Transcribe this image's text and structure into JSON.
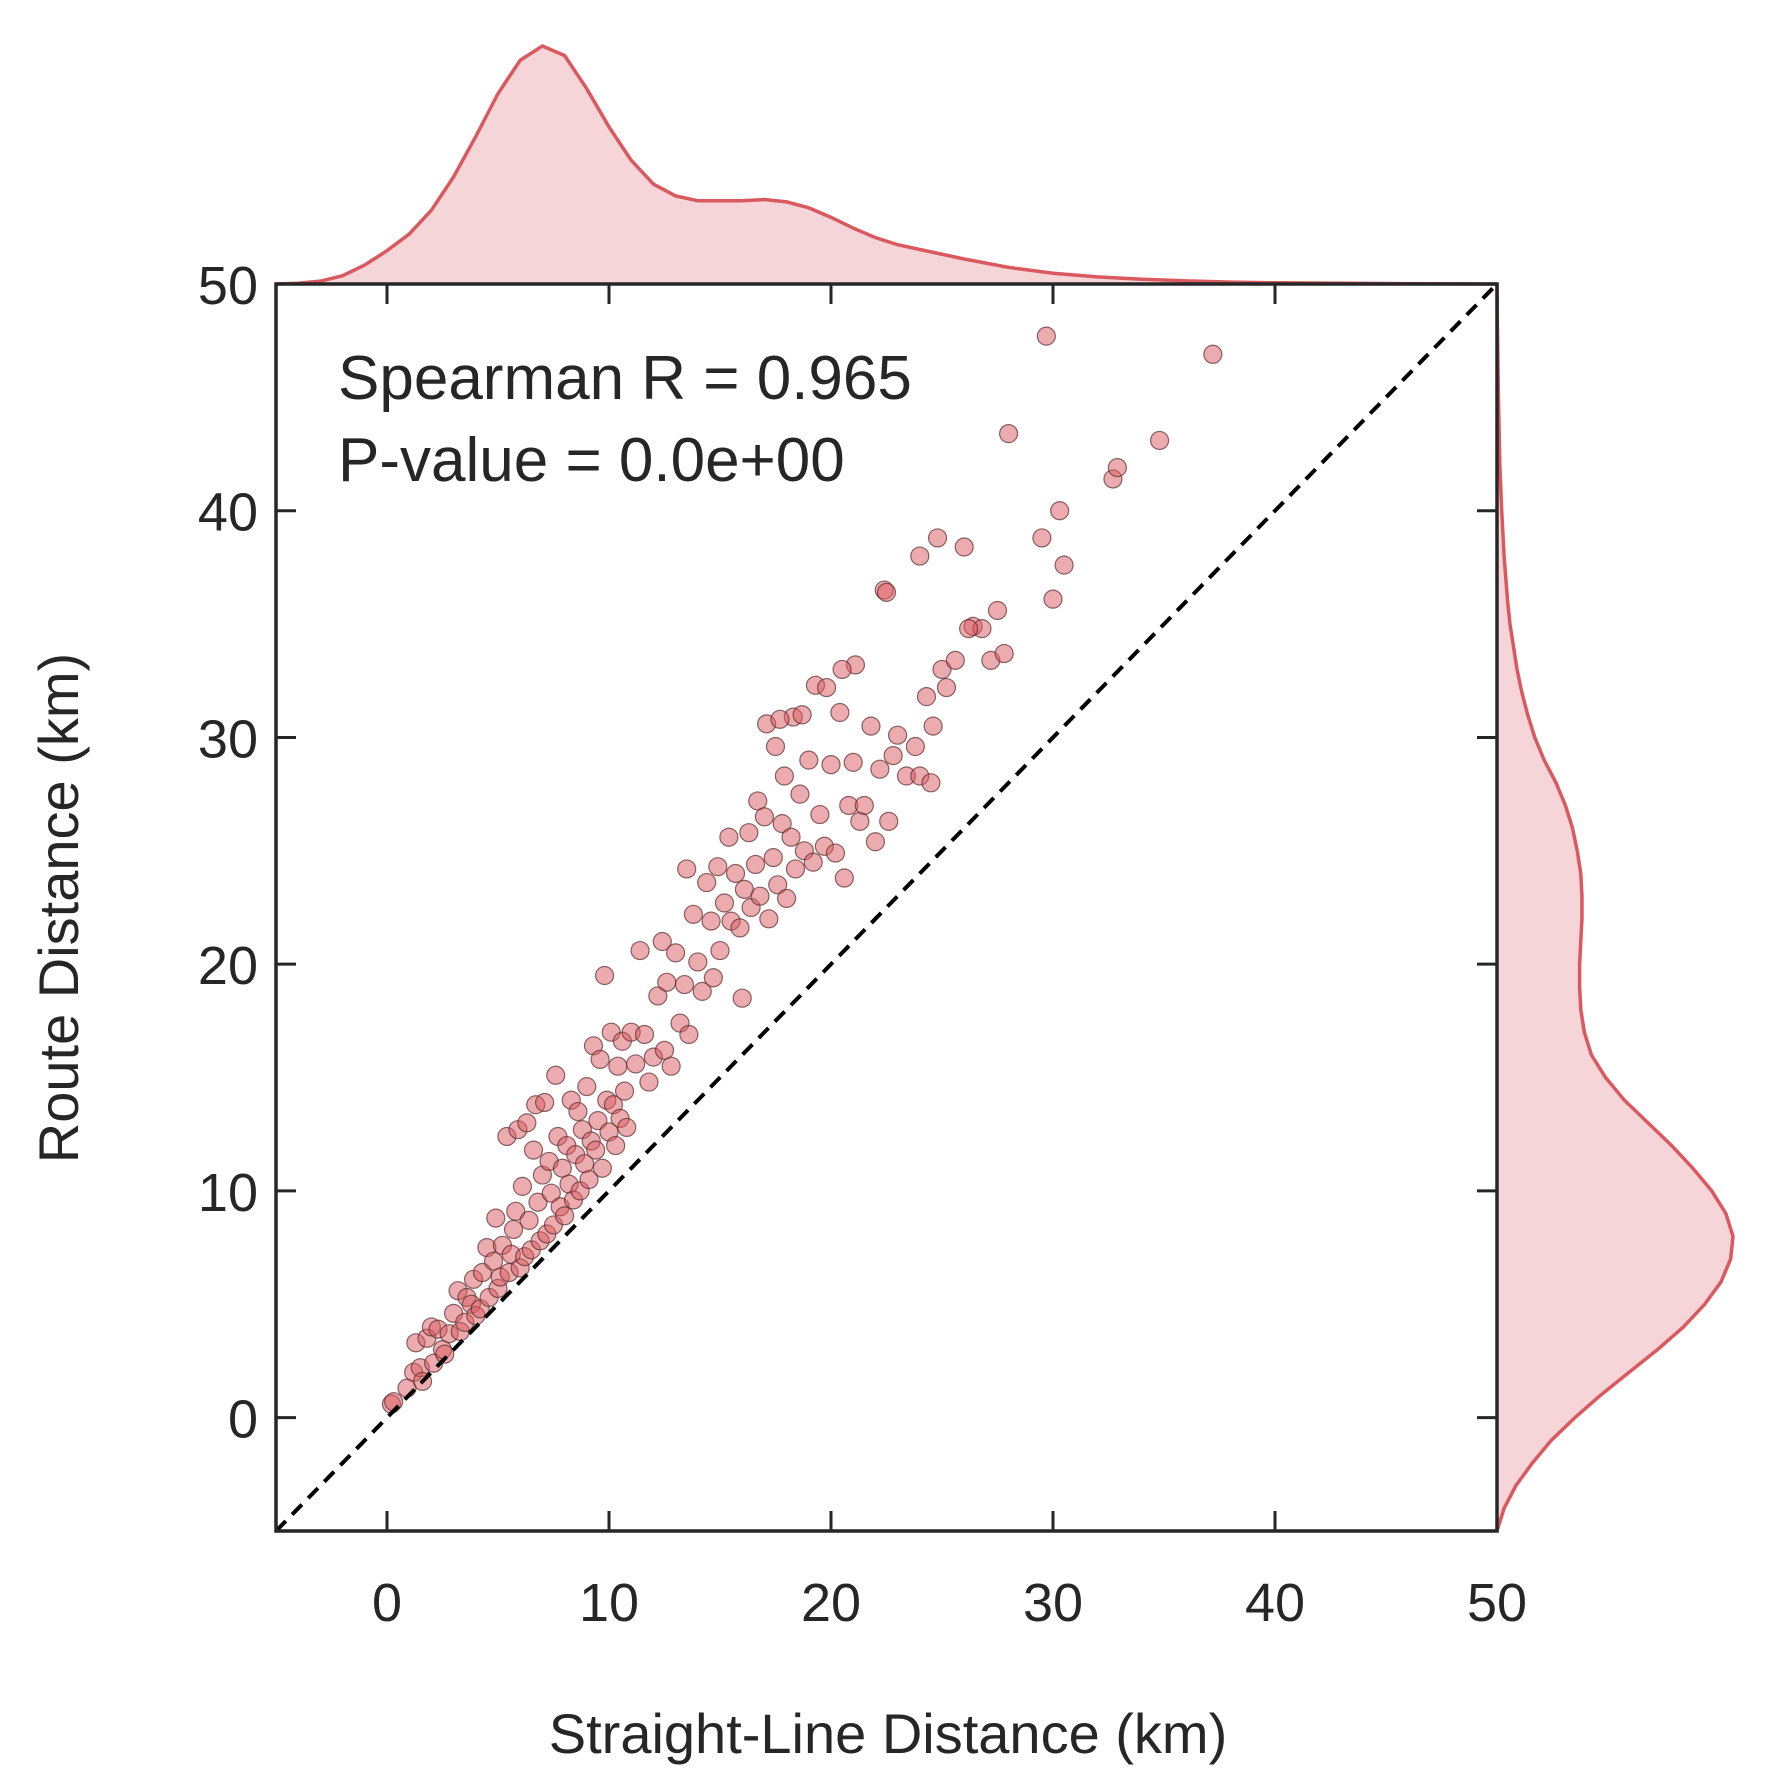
{
  "chart_data": {
    "type": "scatter",
    "xlabel": "Straight-Line Distance (km)",
    "ylabel": "Route Distance (km)",
    "xlim": [
      -5,
      50
    ],
    "ylim": [
      -5,
      50
    ],
    "xticks": [
      "0",
      "10",
      "20",
      "30",
      "40",
      "50"
    ],
    "yticks": [
      "0",
      "10",
      "20",
      "30",
      "40",
      "50"
    ],
    "annotations": [
      "Spearman R = 0.965",
      "P-value = 0.0e+00"
    ],
    "reference_line": {
      "style": "dashed",
      "from": [
        -5,
        -5
      ],
      "to": [
        50,
        50
      ],
      "color": "#000000"
    },
    "marker_color": "#d9595f",
    "series": [
      {
        "points": [
          [
            0.2,
            0.6
          ],
          [
            0.3,
            0.7
          ],
          [
            0.9,
            1.3
          ],
          [
            1.2,
            2.0
          ],
          [
            1.3,
            3.3
          ],
          [
            1.5,
            2.2
          ],
          [
            1.6,
            1.6
          ],
          [
            1.8,
            3.5
          ],
          [
            2.0,
            4.0
          ],
          [
            2.1,
            2.4
          ],
          [
            2.3,
            3.9
          ],
          [
            2.5,
            3.0
          ],
          [
            2.6,
            2.8
          ],
          [
            2.8,
            3.7
          ],
          [
            3.0,
            4.6
          ],
          [
            3.2,
            5.6
          ],
          [
            3.3,
            3.8
          ],
          [
            3.5,
            4.2
          ],
          [
            3.6,
            5.3
          ],
          [
            3.8,
            5.0
          ],
          [
            3.9,
            6.1
          ],
          [
            4.0,
            4.5
          ],
          [
            4.2,
            4.8
          ],
          [
            4.3,
            6.4
          ],
          [
            4.5,
            7.5
          ],
          [
            4.6,
            5.3
          ],
          [
            4.8,
            6.9
          ],
          [
            4.9,
            8.8
          ],
          [
            5.0,
            5.7
          ],
          [
            5.1,
            6.2
          ],
          [
            5.2,
            7.6
          ],
          [
            5.4,
            12.4
          ],
          [
            5.5,
            6.4
          ],
          [
            5.6,
            7.2
          ],
          [
            5.7,
            8.3
          ],
          [
            5.8,
            9.1
          ],
          [
            5.9,
            12.7
          ],
          [
            6.0,
            6.6
          ],
          [
            6.1,
            10.2
          ],
          [
            6.2,
            7.1
          ],
          [
            6.3,
            13.0
          ],
          [
            6.4,
            8.7
          ],
          [
            6.5,
            7.4
          ],
          [
            6.6,
            11.8
          ],
          [
            6.7,
            13.8
          ],
          [
            6.8,
            9.5
          ],
          [
            6.9,
            7.8
          ],
          [
            7.0,
            10.7
          ],
          [
            7.1,
            13.9
          ],
          [
            7.2,
            8.1
          ],
          [
            7.3,
            11.3
          ],
          [
            7.4,
            9.9
          ],
          [
            7.5,
            8.5
          ],
          [
            7.6,
            15.1
          ],
          [
            7.7,
            12.4
          ],
          [
            7.8,
            9.3
          ],
          [
            7.9,
            11.0
          ],
          [
            8.0,
            8.9
          ],
          [
            8.1,
            12.0
          ],
          [
            8.2,
            10.3
          ],
          [
            8.3,
            14.0
          ],
          [
            8.4,
            9.6
          ],
          [
            8.5,
            11.6
          ],
          [
            8.6,
            13.5
          ],
          [
            8.7,
            10.0
          ],
          [
            8.8,
            12.7
          ],
          [
            8.9,
            11.2
          ],
          [
            9.0,
            14.6
          ],
          [
            9.1,
            10.5
          ],
          [
            9.2,
            12.2
          ],
          [
            9.3,
            16.4
          ],
          [
            9.4,
            11.8
          ],
          [
            9.5,
            13.1
          ],
          [
            9.6,
            15.8
          ],
          [
            9.7,
            11.0
          ],
          [
            9.8,
            19.5
          ],
          [
            9.9,
            14.0
          ],
          [
            10.0,
            12.6
          ],
          [
            10.1,
            17.0
          ],
          [
            10.2,
            13.8
          ],
          [
            10.3,
            12.0
          ],
          [
            10.4,
            15.5
          ],
          [
            10.5,
            13.2
          ],
          [
            10.6,
            16.6
          ],
          [
            10.7,
            14.4
          ],
          [
            10.8,
            12.8
          ],
          [
            11.0,
            17.0
          ],
          [
            11.2,
            15.6
          ],
          [
            11.4,
            20.6
          ],
          [
            11.6,
            16.9
          ],
          [
            11.8,
            14.8
          ],
          [
            12.0,
            15.9
          ],
          [
            12.2,
            18.6
          ],
          [
            12.4,
            21.0
          ],
          [
            12.5,
            16.2
          ],
          [
            12.6,
            19.2
          ],
          [
            12.8,
            15.5
          ],
          [
            13.0,
            20.5
          ],
          [
            13.2,
            17.4
          ],
          [
            13.4,
            19.1
          ],
          [
            13.5,
            24.2
          ],
          [
            13.6,
            16.9
          ],
          [
            13.8,
            22.2
          ],
          [
            14.0,
            20.1
          ],
          [
            14.2,
            18.8
          ],
          [
            14.4,
            23.6
          ],
          [
            14.6,
            21.9
          ],
          [
            14.7,
            19.4
          ],
          [
            14.9,
            24.3
          ],
          [
            15.0,
            20.6
          ],
          [
            15.2,
            22.7
          ],
          [
            15.4,
            25.6
          ],
          [
            15.5,
            21.9
          ],
          [
            15.7,
            24.0
          ],
          [
            15.9,
            21.6
          ],
          [
            16.0,
            18.5
          ],
          [
            16.1,
            23.3
          ],
          [
            16.3,
            25.8
          ],
          [
            16.4,
            22.5
          ],
          [
            16.6,
            24.4
          ],
          [
            16.7,
            27.2
          ],
          [
            16.8,
            23.0
          ],
          [
            17.0,
            26.5
          ],
          [
            17.1,
            30.6
          ],
          [
            17.2,
            22.0
          ],
          [
            17.4,
            24.7
          ],
          [
            17.5,
            29.6
          ],
          [
            17.6,
            23.5
          ],
          [
            17.8,
            26.2
          ],
          [
            17.9,
            28.3
          ],
          [
            18.0,
            22.9
          ],
          [
            18.2,
            25.6
          ],
          [
            18.3,
            30.9
          ],
          [
            18.4,
            24.2
          ],
          [
            18.6,
            27.5
          ],
          [
            18.7,
            31.0
          ],
          [
            18.8,
            25.0
          ],
          [
            19.0,
            29.0
          ],
          [
            19.2,
            24.5
          ],
          [
            19.3,
            32.3
          ],
          [
            19.5,
            26.6
          ],
          [
            19.7,
            25.2
          ],
          [
            19.8,
            32.2
          ],
          [
            20.0,
            28.8
          ],
          [
            20.2,
            24.9
          ],
          [
            20.4,
            31.1
          ],
          [
            20.6,
            23.8
          ],
          [
            20.8,
            27.0
          ],
          [
            21.0,
            28.9
          ],
          [
            21.1,
            33.2
          ],
          [
            21.3,
            26.3
          ],
          [
            21.5,
            27.0
          ],
          [
            21.8,
            30.5
          ],
          [
            22.0,
            25.4
          ],
          [
            22.2,
            28.6
          ],
          [
            22.4,
            36.5
          ],
          [
            22.6,
            26.3
          ],
          [
            22.8,
            29.2
          ],
          [
            23.0,
            30.1
          ],
          [
            23.4,
            28.3
          ],
          [
            23.8,
            29.6
          ],
          [
            24.0,
            28.3
          ],
          [
            24.3,
            31.8
          ],
          [
            24.5,
            28.0
          ],
          [
            24.6,
            30.5
          ],
          [
            24.8,
            38.8
          ],
          [
            25.0,
            33.0
          ],
          [
            25.2,
            32.2
          ],
          [
            25.6,
            33.4
          ],
          [
            26.0,
            38.4
          ],
          [
            26.4,
            34.9
          ],
          [
            26.8,
            34.8
          ],
          [
            27.2,
            33.4
          ],
          [
            27.5,
            35.6
          ],
          [
            27.8,
            33.7
          ],
          [
            28.0,
            43.4
          ],
          [
            29.5,
            38.8
          ],
          [
            29.7,
            47.7
          ],
          [
            30.0,
            36.1
          ],
          [
            30.3,
            40.0
          ],
          [
            30.5,
            37.6
          ],
          [
            32.7,
            41.4
          ],
          [
            32.9,
            41.9
          ],
          [
            34.8,
            43.1
          ],
          [
            37.2,
            46.9
          ],
          [
            24.0,
            38.0
          ],
          [
            22.5,
            36.4
          ],
          [
            20.5,
            33.0
          ],
          [
            17.7,
            30.8
          ],
          [
            26.2,
            34.8
          ]
        ]
      }
    ],
    "marginal_x": {
      "type": "kde",
      "x": [
        -5,
        -4,
        -3,
        -2,
        -1,
        0,
        1,
        2,
        3,
        4,
        5,
        6,
        7,
        8,
        9,
        10,
        11,
        12,
        13,
        14,
        15,
        16,
        17,
        18,
        19,
        20,
        21,
        22,
        23,
        24,
        25,
        26,
        28,
        30,
        32,
        34,
        36,
        38,
        40,
        45,
        50
      ],
      "density": [
        0.0,
        0.003,
        0.012,
        0.035,
        0.08,
        0.14,
        0.21,
        0.31,
        0.45,
        0.62,
        0.8,
        0.94,
        1.0,
        0.96,
        0.82,
        0.66,
        0.52,
        0.42,
        0.37,
        0.35,
        0.35,
        0.35,
        0.355,
        0.345,
        0.32,
        0.28,
        0.235,
        0.195,
        0.165,
        0.145,
        0.125,
        0.105,
        0.07,
        0.045,
        0.03,
        0.02,
        0.013,
        0.008,
        0.005,
        0.002,
        0.0
      ]
    },
    "marginal_y": {
      "type": "kde",
      "y": [
        -5,
        -4,
        -3,
        -2,
        -1,
        0,
        1,
        2,
        3,
        4,
        5,
        6,
        7,
        8,
        9,
        10,
        11,
        12,
        13,
        14,
        15,
        16,
        17,
        18,
        19,
        20,
        21,
        22,
        23,
        24,
        25,
        26,
        27,
        28,
        29,
        30,
        31,
        32,
        33,
        34,
        35,
        36,
        38,
        40,
        42,
        45,
        48,
        50
      ],
      "density": [
        0.0,
        0.03,
        0.08,
        0.15,
        0.23,
        0.33,
        0.44,
        0.56,
        0.68,
        0.79,
        0.88,
        0.95,
        0.99,
        1.0,
        0.97,
        0.91,
        0.83,
        0.74,
        0.64,
        0.54,
        0.46,
        0.4,
        0.37,
        0.355,
        0.35,
        0.35,
        0.355,
        0.36,
        0.36,
        0.355,
        0.34,
        0.32,
        0.29,
        0.25,
        0.2,
        0.16,
        0.13,
        0.105,
        0.085,
        0.07,
        0.055,
        0.045,
        0.03,
        0.02,
        0.012,
        0.006,
        0.002,
        0.0
      ]
    }
  }
}
